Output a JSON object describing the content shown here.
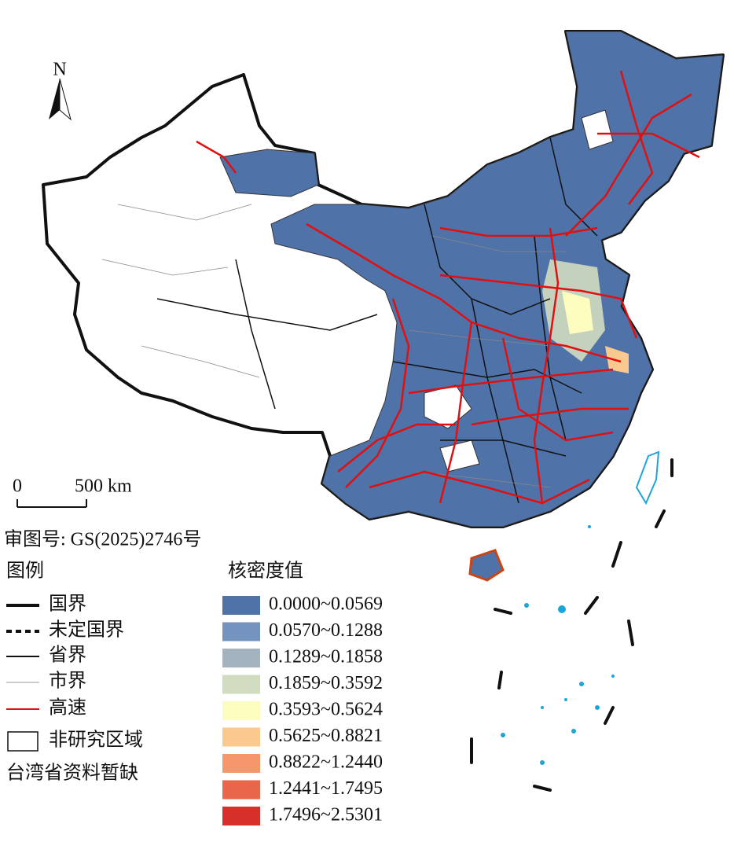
{
  "north_label": "N",
  "scale_bar": {
    "start": "0",
    "end": "500 km"
  },
  "approval": "审图号: GS(2025)2746号",
  "legend": {
    "title": "图例",
    "items": [
      {
        "label": "国界"
      },
      {
        "label": "未定国界"
      },
      {
        "label": "省界"
      },
      {
        "label": "市界"
      },
      {
        "label": "高速"
      },
      {
        "label": "非研究区域"
      }
    ],
    "note": "台湾省资料暂缺"
  },
  "density_legend": {
    "title": "核密度值",
    "classes": [
      {
        "label": "0.0000~0.0569",
        "color": "#4f72a8"
      },
      {
        "label": "0.0570~0.1288",
        "color": "#7593bf"
      },
      {
        "label": "0.1289~0.1858",
        "color": "#a3b4c0"
      },
      {
        "label": "0.1859~0.3592",
        "color": "#d0dbbf"
      },
      {
        "label": "0.3593~0.5624",
        "color": "#fefdc0"
      },
      {
        "label": "0.5625~0.8821",
        "color": "#fbc98e"
      },
      {
        "label": "0.8822~1.2440",
        "color": "#f5976a"
      },
      {
        "label": "1.2441~1.7495",
        "color": "#e8664a"
      },
      {
        "label": "1.7496~2.5301",
        "color": "#d7302a"
      }
    ]
  }
}
